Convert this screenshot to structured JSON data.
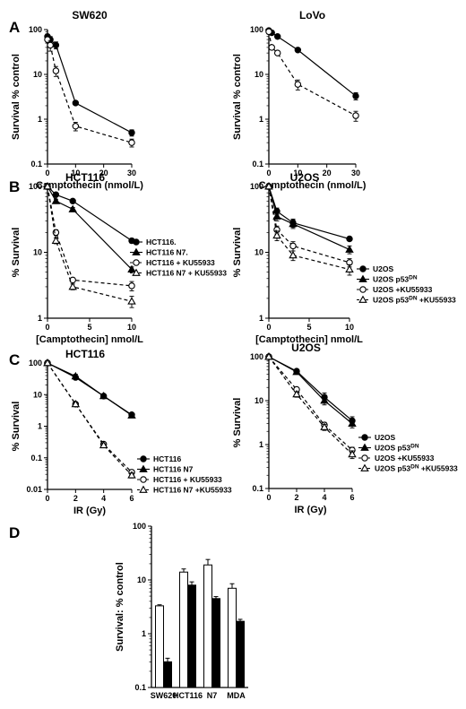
{
  "panel_letters": [
    "A",
    "B",
    "C",
    "D"
  ],
  "chart_data": [
    {
      "type": "line",
      "panel": "A",
      "title": "SW620",
      "xlabel": "Camptothecin (nmol/L)",
      "ylabel": "Survival % control",
      "yscale": "log",
      "xlim": [
        0,
        30
      ],
      "ylim": [
        0.1,
        100
      ],
      "xticks": [
        "0",
        "10",
        "20",
        "30"
      ],
      "yticks": [
        "0.1",
        "1",
        "10",
        "100"
      ],
      "series": [
        {
          "marker": "filled-circle",
          "dash": false,
          "x": [
            0,
            1,
            3,
            10,
            30
          ],
          "y": [
            70,
            60,
            45,
            2.3,
            0.5
          ],
          "err": [
            8,
            10,
            8,
            0.2,
            0.08
          ]
        },
        {
          "marker": "open-circle",
          "dash": true,
          "x": [
            0,
            1,
            3,
            10,
            30
          ],
          "y": [
            60,
            45,
            12,
            0.7,
            0.3
          ],
          "err": [
            10,
            12,
            3,
            0.15,
            0.06
          ]
        }
      ]
    },
    {
      "type": "line",
      "panel": "A",
      "title": "LoVo",
      "xlabel": "Camptothecin (nmol/L)",
      "ylabel": "Survival % control",
      "yscale": "log",
      "xlim": [
        0,
        30
      ],
      "ylim": [
        0.1,
        100
      ],
      "xticks": [
        "0",
        "10",
        "20",
        "30"
      ],
      "yticks": [
        "0.1",
        "1",
        "10",
        "100"
      ],
      "series": [
        {
          "marker": "filled-circle",
          "dash": false,
          "x": [
            0,
            1,
            3,
            10,
            30
          ],
          "y": [
            95,
            85,
            70,
            35,
            3.3
          ],
          "err": [
            0,
            0,
            0,
            0,
            0.6
          ]
        },
        {
          "marker": "open-circle",
          "dash": true,
          "x": [
            0,
            1,
            3,
            10,
            30
          ],
          "y": [
            90,
            40,
            30,
            6,
            1.2
          ],
          "err": [
            0,
            0,
            0,
            1.5,
            0.3
          ]
        }
      ]
    },
    {
      "type": "line",
      "panel": "B",
      "title": "HCT116",
      "xlabel": "[Camptothecin] nmol/L",
      "ylabel": "% Survival",
      "yscale": "log",
      "xlim": [
        0,
        10
      ],
      "ylim": [
        1,
        100
      ],
      "xticks": [
        "0",
        "5",
        "10"
      ],
      "yticks": [
        "1",
        "10",
        "100"
      ],
      "legend_position": "right",
      "series": [
        {
          "name": "HCT116.",
          "marker": "filled-circle",
          "dash": false,
          "x": [
            0,
            1,
            3,
            10
          ],
          "y": [
            100,
            75,
            60,
            15
          ],
          "err": [
            0,
            4,
            3,
            1.2
          ]
        },
        {
          "name": "HCT116 N7.",
          "marker": "filled-triangle",
          "dash": false,
          "x": [
            0,
            1,
            3,
            10
          ],
          "y": [
            100,
            60,
            45,
            5.5
          ],
          "err": [
            0,
            4,
            3,
            0.5
          ]
        },
        {
          "name": "HCT116 + KU55933",
          "marker": "open-circle",
          "dash": true,
          "x": [
            0,
            1,
            3,
            10
          ],
          "y": [
            100,
            20,
            3.8,
            3.1
          ],
          "err": [
            0,
            2,
            0.3,
            0.5
          ]
        },
        {
          "name": "HCT116 N7 + KU55933",
          "marker": "open-triangle",
          "dash": true,
          "x": [
            0,
            1,
            3,
            10
          ],
          "y": [
            100,
            15,
            3.0,
            1.8
          ],
          "err": [
            0,
            1.5,
            0.3,
            0.35
          ]
        }
      ]
    },
    {
      "type": "line",
      "panel": "B",
      "title": "U2OS",
      "xlabel": "[Camptothecin] nmol/L",
      "ylabel": "% Survival",
      "yscale": "log",
      "xlim": [
        0,
        10
      ],
      "ylim": [
        1,
        100
      ],
      "xticks": [
        "0",
        "5",
        "10"
      ],
      "yticks": [
        "1",
        "10",
        "100"
      ],
      "legend_position": "right",
      "series": [
        {
          "name": "U2OS",
          "marker": "filled-circle",
          "dash": false,
          "x": [
            0,
            1,
            3,
            10
          ],
          "y": [
            100,
            42,
            28,
            16
          ],
          "err": [
            0,
            5,
            4,
            1
          ]
        },
        {
          "name": "U2OS p53DN",
          "marker": "filled-triangle",
          "dash": false,
          "x": [
            0,
            1,
            3,
            10
          ],
          "y": [
            100,
            35,
            27,
            11
          ],
          "err": [
            0,
            5,
            4,
            1.5
          ]
        },
        {
          "name": "U2OS +KU55933",
          "marker": "open-circle",
          "dash": true,
          "x": [
            0,
            1,
            3,
            10
          ],
          "y": [
            100,
            22,
            12.5,
            7
          ],
          "err": [
            0,
            3,
            2,
            1
          ]
        },
        {
          "name": "U2OS p53DN +KU55933",
          "marker": "open-triangle",
          "dash": true,
          "x": [
            0,
            1,
            3,
            10
          ],
          "y": [
            100,
            18,
            9,
            5.5
          ],
          "err": [
            0,
            3,
            1.5,
            1
          ]
        }
      ]
    },
    {
      "type": "line",
      "panel": "C",
      "title": "HCT116",
      "xlabel": "IR (Gy)",
      "ylabel": "% Survival",
      "yscale": "log",
      "xlim": [
        0,
        6
      ],
      "ylim": [
        0.01,
        100
      ],
      "xticks": [
        "0",
        "2",
        "4",
        "6"
      ],
      "yticks": [
        "0.01",
        "0.1",
        "1",
        "10",
        "100"
      ],
      "legend_position": "bottom-right",
      "series": [
        {
          "name": "HCT116",
          "marker": "filled-circle",
          "dash": false,
          "x": [
            0,
            2,
            4,
            6
          ],
          "y": [
            100,
            35,
            9,
            2.3
          ],
          "err": [
            0,
            4,
            1,
            0.3
          ]
        },
        {
          "name": "HCT116 N7",
          "marker": "filled-triangle",
          "dash": false,
          "x": [
            0,
            2,
            4,
            6
          ],
          "y": [
            100,
            38,
            9,
            2.2
          ],
          "err": [
            0,
            6,
            1,
            0.3
          ]
        },
        {
          "name": "HCT116 + KU55933",
          "marker": "open-circle",
          "dash": true,
          "x": [
            0,
            2,
            4,
            6
          ],
          "y": [
            100,
            5,
            0.27,
            0.035
          ],
          "err": [
            0,
            0.5,
            0.04,
            0.006
          ]
        },
        {
          "name": "HCT116 N7 +KU55933",
          "marker": "open-triangle",
          "dash": true,
          "x": [
            0,
            2,
            4,
            6
          ],
          "y": [
            100,
            5,
            0.25,
            0.028
          ],
          "err": [
            0,
            0.5,
            0.03,
            0.005
          ]
        }
      ]
    },
    {
      "type": "line",
      "panel": "C",
      "title": "U2OS",
      "xlabel": "IR (Gy)",
      "ylabel": "% Survival",
      "yscale": "log",
      "xlim": [
        0,
        6
      ],
      "ylim": [
        0.1,
        100
      ],
      "xticks": [
        "0",
        "2",
        "4",
        "6"
      ],
      "yticks": [
        "0.1",
        "1",
        "10",
        "100"
      ],
      "legend_position": "bottom-right",
      "series": [
        {
          "name": "U2OS",
          "marker": "filled-circle",
          "dash": false,
          "x": [
            0,
            2,
            4,
            6
          ],
          "y": [
            100,
            47,
            12,
            3.5
          ],
          "err": [
            0,
            4,
            3,
            0.8
          ]
        },
        {
          "name": "U2OS p53DN",
          "marker": "filled-triangle",
          "dash": false,
          "x": [
            0,
            2,
            4,
            6
          ],
          "y": [
            100,
            45,
            10,
            3.0
          ],
          "err": [
            0,
            4,
            2,
            0.6
          ]
        },
        {
          "name": "U2OS +KU55933",
          "marker": "open-circle",
          "dash": true,
          "x": [
            0,
            2,
            4,
            6
          ],
          "y": [
            100,
            18,
            2.8,
            0.75
          ],
          "err": [
            0,
            2,
            0.4,
            0.12
          ]
        },
        {
          "name": "U2OS p53DN +KU55933",
          "marker": "open-triangle",
          "dash": true,
          "x": [
            0,
            2,
            4,
            6
          ],
          "y": [
            100,
            14,
            2.5,
            0.6
          ],
          "err": [
            0,
            2,
            0.4,
            0.12
          ]
        }
      ]
    },
    {
      "type": "bar",
      "panel": "D",
      "ylabel": "Survival: % control",
      "yscale": "log",
      "ylim": [
        0.1,
        100
      ],
      "yticks": [
        "0.1",
        "1",
        "10",
        "100"
      ],
      "categories": [
        "SW620",
        "HCT116",
        "N7",
        "MDA"
      ],
      "series": [
        {
          "fill": "#ffffff",
          "values": [
            3.3,
            14,
            19,
            7
          ],
          "err": [
            0.15,
            2,
            5,
            1.5
          ]
        },
        {
          "fill": "#000000",
          "values": [
            0.3,
            8,
            4.5,
            1.7
          ],
          "err": [
            0.05,
            1.2,
            0.4,
            0.15
          ]
        }
      ]
    }
  ]
}
